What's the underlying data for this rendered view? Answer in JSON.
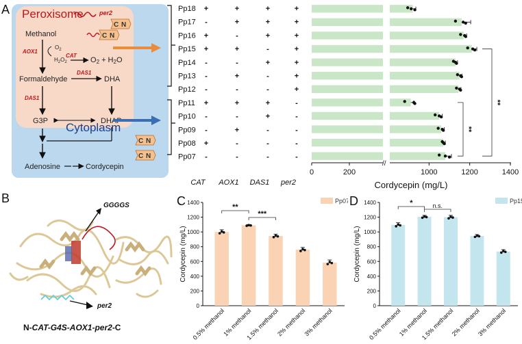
{
  "panel_labels": {
    "a": "A",
    "b": "B",
    "c": "C",
    "d": "D"
  },
  "pathway": {
    "peroxisome_label": "Peroxisome",
    "cytoplasm_label": "Cytoplasm",
    "per2_tag": "per2",
    "tag_c": "C",
    "tag_n": "N",
    "methanol": "Methanol",
    "o2": "O",
    "o2_sub": "2",
    "h2o2": "H",
    "h2o2_sub1": "2",
    "h2o2_o": "O",
    "h2o2_sub2": "2",
    "o2_h2o": "O",
    "o2_h2o_sub": "2",
    "o2_h2o_rest": " + H",
    "o2_h2o_sub2": "2",
    "o2_h2o_end": "O",
    "formaldehyde": "Formaldehyde",
    "dha": "DHA",
    "g3p": "G3P",
    "dhap": "DHAP",
    "adenosine": "Adenosine",
    "cordycepin": "Cordycepin",
    "enzymes": {
      "aox1": "AOX1",
      "cat": "CAT",
      "das1_top": "DAS1",
      "das1_left": "DAS1"
    },
    "colors": {
      "cytoplasm": "#bcd8ef",
      "peroxisome": "#f8d9c8",
      "enzyme": "#c0161b",
      "orange_arrow": "#e98d3a",
      "blue_arrow": "#3b6db3"
    }
  },
  "strain_table": {
    "columns": [
      "CAT",
      "AOX1",
      "DAS1",
      "per2"
    ],
    "rows": [
      {
        "name": "Pp18",
        "cat": "+",
        "aox1": "+",
        "das1": "+",
        "per2": "+"
      },
      {
        "name": "Pp17",
        "cat": "-",
        "aox1": "+",
        "das1": "+",
        "per2": "+"
      },
      {
        "name": "Pp16",
        "cat": "+",
        "aox1": "-",
        "das1": "+",
        "per2": "+"
      },
      {
        "name": "Pp15",
        "cat": "+",
        "aox1": "+",
        "das1": "-",
        "per2": "+"
      },
      {
        "name": "Pp14",
        "cat": "-",
        "aox1": "-",
        "das1": "+",
        "per2": "+"
      },
      {
        "name": "Pp13",
        "cat": "-",
        "aox1": "+",
        "das1": "-",
        "per2": "+"
      },
      {
        "name": "Pp12",
        "cat": "-",
        "aox1": "-",
        "das1": "-",
        "per2": "+"
      },
      {
        "name": "Pp11",
        "cat": "+",
        "aox1": "+",
        "das1": "+",
        "per2": "-"
      },
      {
        "name": "Pp10",
        "cat": "-",
        "aox1": "-",
        "das1": "+",
        "per2": "-"
      },
      {
        "name": "Pp09",
        "cat": "-",
        "aox1": "+",
        "das1": "-",
        "per2": "-"
      },
      {
        "name": "Pp08",
        "cat": "+",
        "aox1": "-",
        "das1": "-",
        "per2": "-"
      },
      {
        "name": "Pp07",
        "cat": "-",
        "aox1": "-",
        "das1": "-",
        "per2": "-"
      }
    ]
  },
  "structure": {
    "linker_label": "GGGGS",
    "per2_label": "per2",
    "caption_prefix": "N-",
    "caption_italic": "CAT-G4S-AOX1-per2",
    "caption_suffix": "-C"
  },
  "chart_data": [
    {
      "type": "bar",
      "orientation": "horizontal",
      "categories": [
        "Pp18",
        "Pp17",
        "Pp16",
        "Pp15",
        "Pp14",
        "Pp13",
        "Pp12",
        "Pp11",
        "Pp10",
        "Pp09",
        "Pp08",
        "Pp07"
      ],
      "values": [
        920,
        1160,
        1170,
        1210,
        1130,
        1150,
        1145,
        910,
        1050,
        1060,
        1070,
        1080
      ],
      "xlabel": "Cordycepin (mg/L)",
      "xlim": [
        0,
        1400
      ],
      "xticks": [
        "0",
        "200",
        "1000",
        "1200",
        "1400"
      ],
      "axis_break": [
        400,
        800
      ],
      "significance": [
        {
          "from": "Pp15",
          "to": "Pp07",
          "label": "**"
        },
        {
          "from": "Pp11",
          "to": "Pp07",
          "label": "**"
        }
      ],
      "colors": {
        "bar": "#c9e7c6"
      }
    },
    {
      "type": "bar",
      "categories": [
        "0.5% methanol",
        "1% methanol",
        "1.5% methanol",
        "2% methanol",
        "3% methanol"
      ],
      "values": [
        1000,
        1090,
        945,
        760,
        585
      ],
      "ylabel": "Cordycepin (mg/L)",
      "ylim": [
        0,
        1400
      ],
      "yticks": [
        "0",
        "200",
        "400",
        "600",
        "800",
        "1000",
        "1200",
        "1400"
      ],
      "legend": "Pp07",
      "legend_position": "top-right",
      "significance": [
        {
          "from": "0.5% methanol",
          "to": "1% methanol",
          "label": "**"
        },
        {
          "from": "1% methanol",
          "to": "1.5% methanol",
          "label": "***"
        }
      ],
      "colors": {
        "bar": "#f9d3b4"
      }
    },
    {
      "type": "bar",
      "categories": [
        "0.5% methanol",
        "1% methanol",
        "1.5% methanol",
        "2% methanol",
        "3% methanol"
      ],
      "values": [
        1095,
        1205,
        1200,
        945,
        735
      ],
      "ylabel": "Cordycepin (mg/L)",
      "ylim": [
        0,
        1400
      ],
      "yticks": [
        "0",
        "200",
        "400",
        "600",
        "800",
        "1000",
        "1200",
        "1400"
      ],
      "legend": "Pp15",
      "legend_position": "top-right",
      "significance": [
        {
          "from": "0.5% methanol",
          "to": "1% methanol",
          "label": "*"
        },
        {
          "from": "1% methanol",
          "to": "1.5% methanol",
          "label": "n.s."
        }
      ],
      "colors": {
        "bar": "#c3e5ee"
      }
    }
  ]
}
